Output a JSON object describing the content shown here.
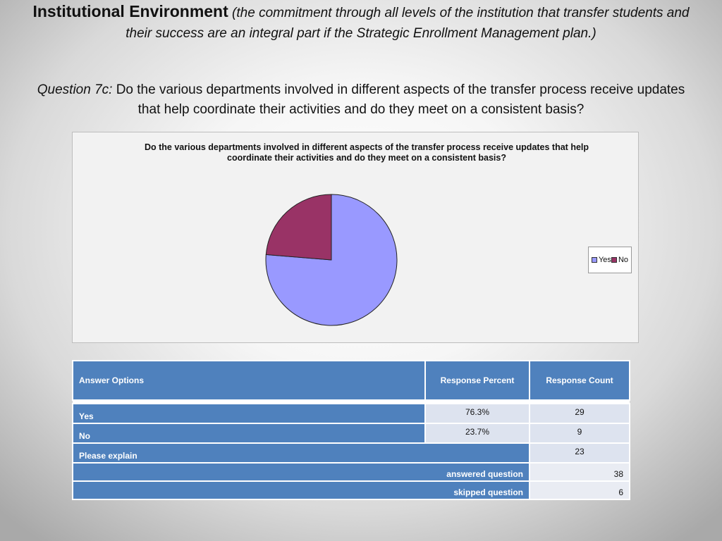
{
  "heading": {
    "title": "Institutional Environment",
    "subtitle": "(the commitment through all levels of the institution that transfer students and their success are an integral part if the Strategic Enrollment Management plan.)"
  },
  "question": {
    "prefix": "Question 7c:",
    "text": "Do the various departments involved in different aspects of the transfer process receive updates that help coordinate their activities and do they meet on a consistent basis?"
  },
  "chart_data": {
    "type": "pie",
    "title": "Do the various departments involved in different aspects of the transfer process receive updates that help coordinate their activities and do they meet on a consistent basis?",
    "categories": [
      "Yes",
      "No"
    ],
    "values": [
      76.3,
      23.7
    ],
    "colors": [
      "#9999ff",
      "#993366"
    ],
    "legend_position": "right"
  },
  "table": {
    "headers": {
      "options": "Answer Options",
      "percent": "Response Percent",
      "count": "Response Count"
    },
    "rows": [
      {
        "option": "Yes",
        "percent": "76.3%",
        "count": "29"
      },
      {
        "option": "No",
        "percent": "23.7%",
        "count": "9"
      }
    ],
    "explain": {
      "label": "Please explain",
      "count": "23"
    },
    "answered": {
      "label": "answered question",
      "value": "38"
    },
    "skipped": {
      "label": "skipped question",
      "value": "6"
    }
  }
}
